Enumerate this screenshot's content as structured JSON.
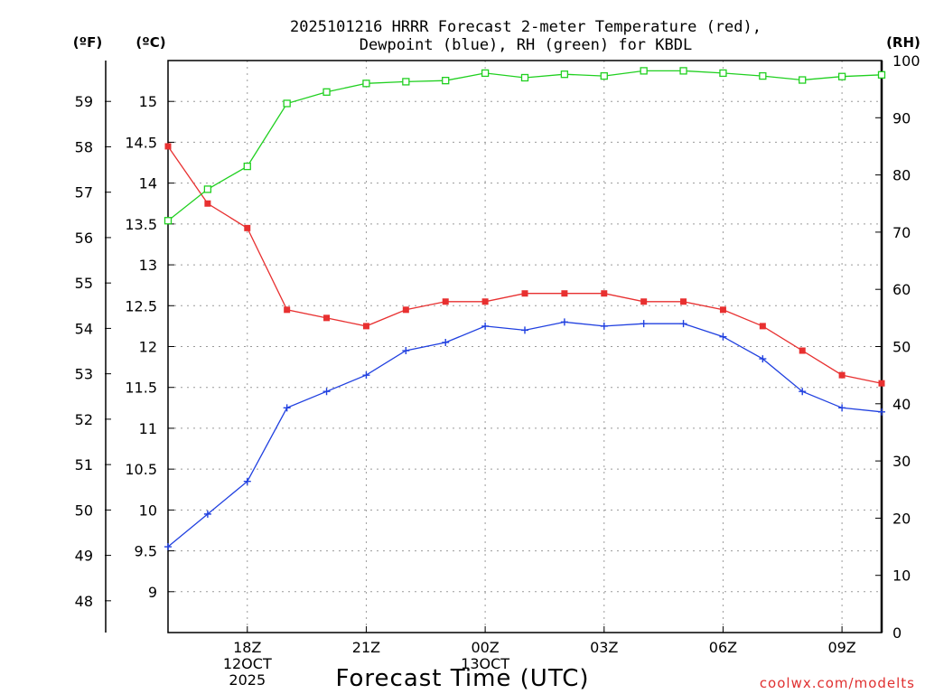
{
  "chart_data": {
    "type": "line",
    "title": [
      "2025101216 HRRR Forecast 2-meter Temperature (red),",
      "Dewpoint (blue), RH (green) for KBDL"
    ],
    "xlabel": "Forecast Time (UTC)",
    "credit": "coolwx.com/modelts",
    "units": {
      "fahrenheit": "(ºF)",
      "celsius": "(ºC)",
      "rh": "(RH)"
    },
    "x": [
      16,
      17,
      18,
      19,
      20,
      21,
      22,
      23,
      24,
      25,
      26,
      27,
      28,
      29,
      30,
      31,
      32,
      33,
      34
    ],
    "xlim": [
      16,
      34
    ],
    "x_ticks": [
      {
        "x": 18,
        "lines": [
          "18Z",
          "12OCT",
          "2025"
        ]
      },
      {
        "x": 21,
        "lines": [
          "21Z"
        ]
      },
      {
        "x": 24,
        "lines": [
          "00Z",
          "13OCT"
        ]
      },
      {
        "x": 27,
        "lines": [
          "03Z"
        ]
      },
      {
        "x": 30,
        "lines": [
          "06Z"
        ]
      },
      {
        "x": 33,
        "lines": [
          "09Z"
        ]
      }
    ],
    "y_celsius": {
      "lim": [
        8.5,
        15.5
      ],
      "ticks": [
        9,
        9.5,
        10,
        10.5,
        11,
        11.5,
        12,
        12.5,
        13,
        13.5,
        14,
        14.5,
        15
      ]
    },
    "y_fahrenheit": {
      "ticks": [
        48,
        49,
        50,
        51,
        52,
        53,
        54,
        55,
        56,
        57,
        58,
        59
      ]
    },
    "y_rh": {
      "lim": [
        0,
        100
      ],
      "ticks": [
        0,
        10,
        20,
        30,
        40,
        50,
        60,
        70,
        80,
        90,
        100
      ]
    },
    "series": [
      {
        "name": "Temperature",
        "axis": "celsius",
        "color": "#e83030",
        "marker": "filled-square",
        "values": [
          14.45,
          13.75,
          13.45,
          12.45,
          12.35,
          12.25,
          12.45,
          12.55,
          12.55,
          12.65,
          12.65,
          12.65,
          12.55,
          12.55,
          12.45,
          12.25,
          11.95,
          11.65,
          11.55
        ]
      },
      {
        "name": "Dewpoint",
        "axis": "celsius",
        "color": "#2040e0",
        "marker": "plus",
        "values": [
          9.55,
          9.95,
          10.35,
          11.25,
          11.45,
          11.65,
          11.95,
          12.05,
          12.25,
          12.2,
          12.3,
          12.25,
          12.28,
          12.28,
          12.12,
          11.85,
          11.45,
          11.25,
          11.2
        ]
      },
      {
        "name": "RH",
        "axis": "rh",
        "color": "#20d020",
        "marker": "open-square",
        "values": [
          72,
          77.5,
          81.5,
          92.5,
          94.5,
          96,
          96.3,
          96.5,
          97.8,
          97,
          97.6,
          97.3,
          98.2,
          98.2,
          97.8,
          97.3,
          96.6,
          97.2,
          97.5
        ]
      }
    ]
  }
}
